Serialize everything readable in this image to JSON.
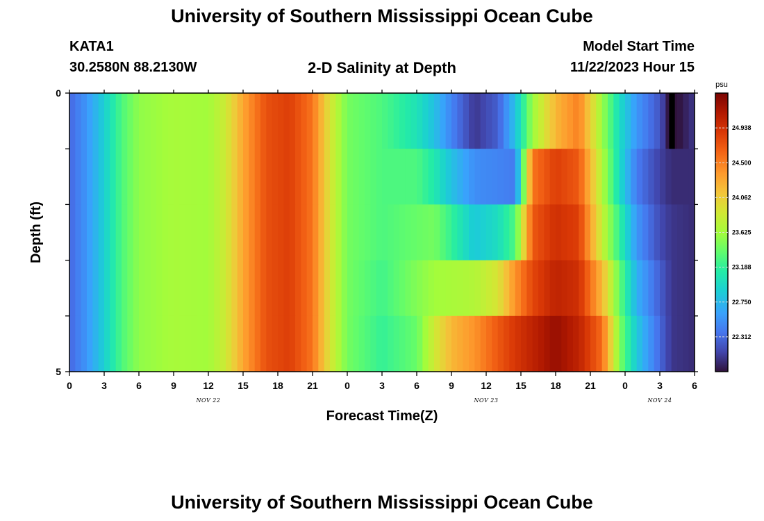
{
  "header": {
    "title": "University of Southern Mississippi Ocean Cube",
    "station_id": "KATA1",
    "coordinates": "30.2580N  88.2130W",
    "plot_title": "2-D Salinity at Depth",
    "model_label": "Model Start Time",
    "model_time": "11/22/2023 Hour 15"
  },
  "footer": {
    "title": "University of Southern Mississippi Ocean Cube"
  },
  "chart_data": {
    "type": "heatmap",
    "title": "2-D Salinity at Depth",
    "xlabel": "Forecast Time(Z)",
    "ylabel": "Depth (ft)",
    "x_ticks": [
      "0",
      "3",
      "6",
      "9",
      "12",
      "15",
      "18",
      "21",
      "0",
      "3",
      "6",
      "9",
      "12",
      "15",
      "18",
      "21",
      "0",
      "3",
      "6"
    ],
    "x_date_labels": [
      {
        "label": "NOV 22",
        "at_hour": 12
      },
      {
        "label": "NOV 23",
        "at_hour": 36
      },
      {
        "label": "NOV 24",
        "at_hour": 51
      }
    ],
    "x_range_hours": [
      0,
      54
    ],
    "y_tick_labels": [
      "0",
      "5"
    ],
    "y_range": [
      0,
      5
    ],
    "colorbar": {
      "unit": "psu",
      "min": 21.875,
      "max": 25.375,
      "ticks": [
        "24.938",
        "24.500",
        "24.062",
        "23.625",
        "23.188",
        "22.750",
        "22.312"
      ]
    },
    "depth_levels": 5,
    "keyframes": [
      {
        "hour": 0,
        "values": [
          22.3,
          22.3,
          22.3,
          22.3,
          22.3
        ]
      },
      {
        "hour": 1.5,
        "values": [
          22.55,
          22.55,
          22.55,
          22.55,
          22.55
        ]
      },
      {
        "hour": 3,
        "values": [
          22.9,
          22.9,
          22.9,
          22.9,
          22.9
        ]
      },
      {
        "hour": 4.5,
        "values": [
          23.3,
          23.3,
          23.3,
          23.3,
          23.3
        ]
      },
      {
        "hour": 6,
        "values": [
          23.55,
          23.55,
          23.55,
          23.55,
          23.55
        ]
      },
      {
        "hour": 9,
        "values": [
          23.65,
          23.65,
          23.65,
          23.65,
          23.65
        ]
      },
      {
        "hour": 12,
        "values": [
          23.62,
          23.62,
          23.62,
          23.62,
          23.62
        ]
      },
      {
        "hour": 13.5,
        "values": [
          23.85,
          23.85,
          23.85,
          23.85,
          23.85
        ]
      },
      {
        "hour": 15,
        "values": [
          24.3,
          24.3,
          24.3,
          24.3,
          24.3
        ]
      },
      {
        "hour": 17,
        "values": [
          24.75,
          24.75,
          24.75,
          24.75,
          24.75
        ]
      },
      {
        "hour": 19,
        "values": [
          24.85,
          24.85,
          24.85,
          24.85,
          24.85
        ]
      },
      {
        "hour": 21,
        "values": [
          24.55,
          24.55,
          24.55,
          24.55,
          24.55
        ]
      },
      {
        "hour": 22.5,
        "values": [
          23.9,
          23.9,
          23.9,
          23.9,
          23.9
        ]
      },
      {
        "hour": 24,
        "values": [
          23.45,
          23.45,
          23.45,
          23.45,
          23.45
        ]
      },
      {
        "hour": 27,
        "values": [
          23.3,
          23.3,
          23.3,
          23.25,
          23.2
        ]
      },
      {
        "hour": 30,
        "values": [
          23.05,
          23.3,
          23.4,
          23.5,
          23.4
        ]
      },
      {
        "hour": 31.5,
        "values": [
          22.8,
          23.1,
          23.45,
          23.62,
          23.85
        ]
      },
      {
        "hour": 33,
        "values": [
          22.45,
          22.8,
          23.2,
          23.65,
          24.2
        ]
      },
      {
        "hour": 35,
        "values": [
          22.05,
          22.5,
          22.85,
          23.7,
          24.4
        ]
      },
      {
        "hour": 37,
        "values": [
          22.25,
          22.45,
          23.0,
          23.9,
          24.7
        ]
      },
      {
        "hour": 38.5,
        "values": [
          22.8,
          22.4,
          23.3,
          24.4,
          24.9
        ]
      },
      {
        "hour": 40,
        "values": [
          23.6,
          24.55,
          24.7,
          24.8,
          25.05
        ]
      },
      {
        "hour": 42,
        "values": [
          24.2,
          24.85,
          24.95,
          25.05,
          25.25
        ]
      },
      {
        "hour": 44,
        "values": [
          24.5,
          24.7,
          24.85,
          24.95,
          25.05
        ]
      },
      {
        "hour": 46,
        "values": [
          23.6,
          23.7,
          23.8,
          24.2,
          24.6
        ]
      },
      {
        "hour": 47.5,
        "values": [
          23.0,
          23.0,
          23.2,
          23.4,
          23.5
        ]
      },
      {
        "hour": 49,
        "values": [
          22.55,
          22.4,
          22.55,
          22.7,
          22.85
        ]
      },
      {
        "hour": 51,
        "values": [
          22.2,
          22.1,
          22.15,
          22.25,
          22.3
        ]
      },
      {
        "hour": 52,
        "values": [
          21.8,
          22.0,
          22.05,
          22.05,
          22.05
        ]
      },
      {
        "hour": 54,
        "values": [
          22.05,
          22.0,
          22.0,
          22.0,
          22.0
        ]
      }
    ],
    "missing_cells": [
      {
        "hour_start": 51.8,
        "hour_end": 52.3,
        "level": 0
      }
    ]
  }
}
